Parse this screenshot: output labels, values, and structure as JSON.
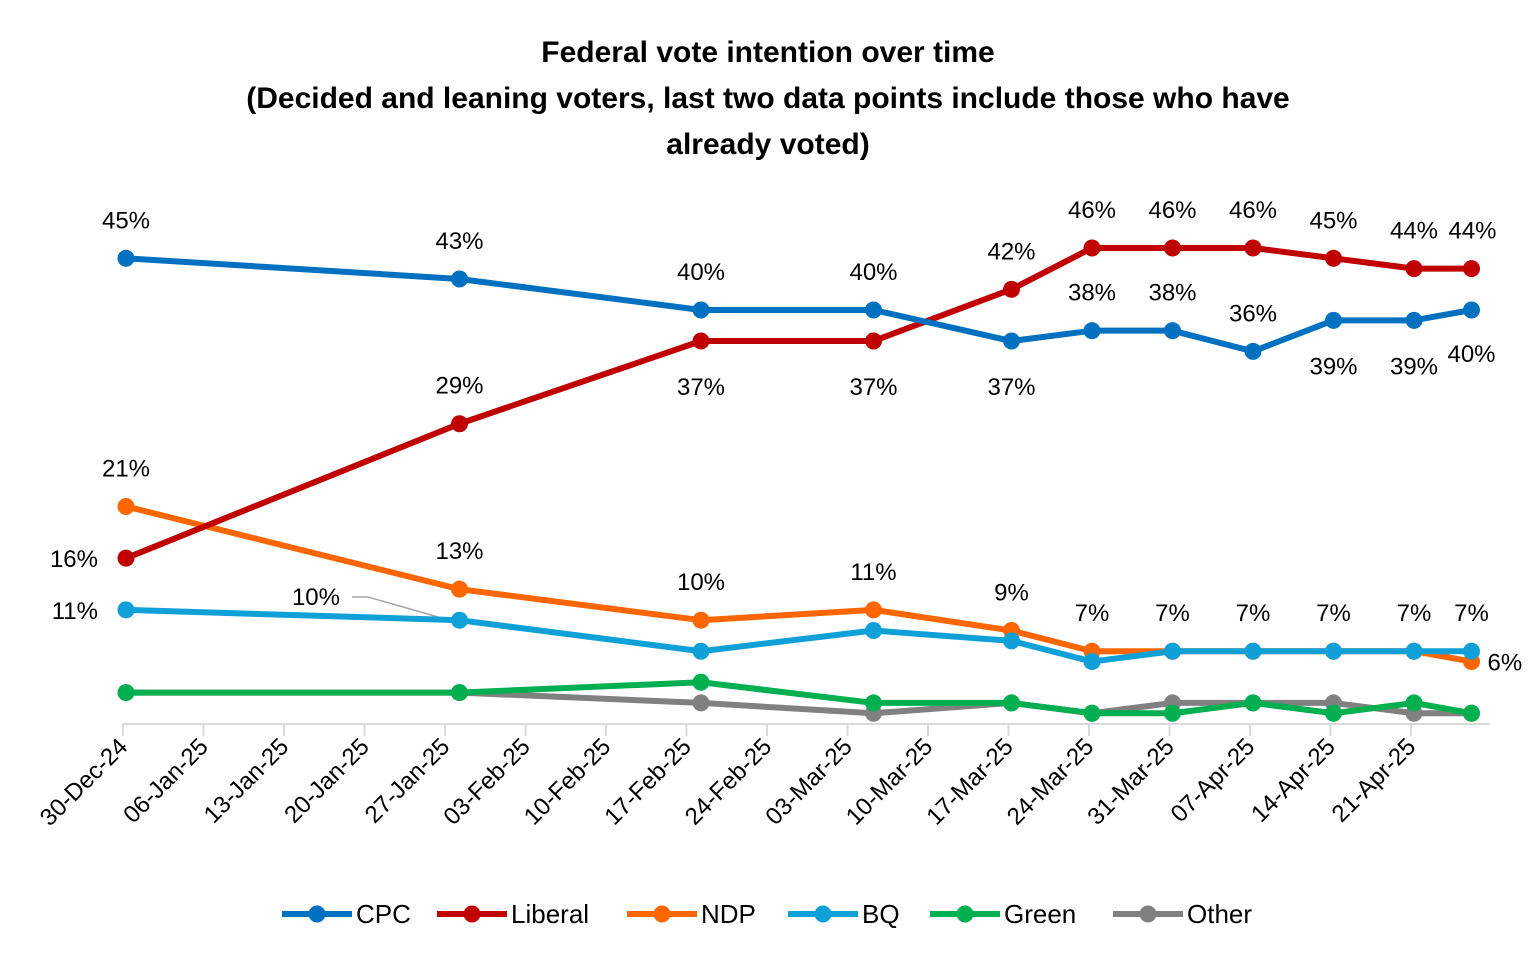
{
  "chart_data": {
    "type": "line",
    "title_lines": [
      "Federal vote intention over time",
      "(Decided and leaning voters, last two data points include those who have",
      "already voted)"
    ],
    "x": [
      "2024-12-30",
      "2025-01-28",
      "2025-02-18",
      "2025-03-05",
      "2025-03-17",
      "2025-03-24",
      "2025-03-31",
      "2025-04-07",
      "2025-04-14",
      "2025-04-21",
      "2025-04-26"
    ],
    "x_tick_labels": [
      "30-Dec-24",
      "06-Jan-25",
      "13-Jan-25",
      "20-Jan-25",
      "27-Jan-25",
      "03-Feb-25",
      "10-Feb-25",
      "17-Feb-25",
      "24-Feb-25",
      "03-Mar-25",
      "10-Mar-25",
      "17-Mar-25",
      "24-Mar-25",
      "31-Mar-25",
      "07-Apr-25",
      "14-Apr-25",
      "21-Apr-25"
    ],
    "ylim": [
      0,
      47
    ],
    "y_unit": "%",
    "grid": false,
    "legend_position": "bottom",
    "series": [
      {
        "name": "CPC",
        "color": "#0070C0",
        "values": [
          45,
          43,
          40,
          40,
          37,
          38,
          38,
          36,
          39,
          39,
          40
        ],
        "labels": [
          "45%",
          "43%",
          "40%",
          "40%",
          "37%",
          "38%",
          "38%",
          "36%",
          "39%",
          "39%",
          "40%"
        ]
      },
      {
        "name": "Liberal",
        "color": "#C00000",
        "values": [
          16,
          29,
          37,
          37,
          42,
          46,
          46,
          46,
          45,
          44,
          44
        ],
        "labels": [
          "16%",
          "29%",
          "37%",
          "37%",
          "42%",
          "46%",
          "46%",
          "46%",
          "45%",
          "44%",
          "44%"
        ]
      },
      {
        "name": "NDP",
        "color": "#FF6600",
        "values": [
          21,
          13,
          10,
          11,
          9,
          7,
          7,
          7,
          7,
          7,
          6
        ],
        "labels": [
          "21%",
          "13%",
          "10%",
          "11%",
          "9%",
          "7%",
          "7%",
          "7%",
          "7%",
          "7%",
          "6%"
        ]
      },
      {
        "name": "BQ",
        "color": "#10A0D8",
        "values": [
          11,
          10,
          7,
          9,
          8,
          6,
          7,
          7,
          7,
          7,
          7
        ],
        "labels": [
          "11%",
          "10%",
          null,
          null,
          null,
          null,
          null,
          null,
          null,
          null,
          "7%"
        ]
      },
      {
        "name": "Green",
        "color": "#00B050",
        "values": [
          3,
          3,
          4,
          2,
          2,
          1,
          1,
          2,
          1,
          2,
          1
        ],
        "labels": []
      },
      {
        "name": "Other",
        "color": "#808080",
        "values": [
          3,
          3,
          2,
          1,
          2,
          1,
          2,
          2,
          2,
          1,
          1
        ],
        "labels": []
      }
    ]
  }
}
